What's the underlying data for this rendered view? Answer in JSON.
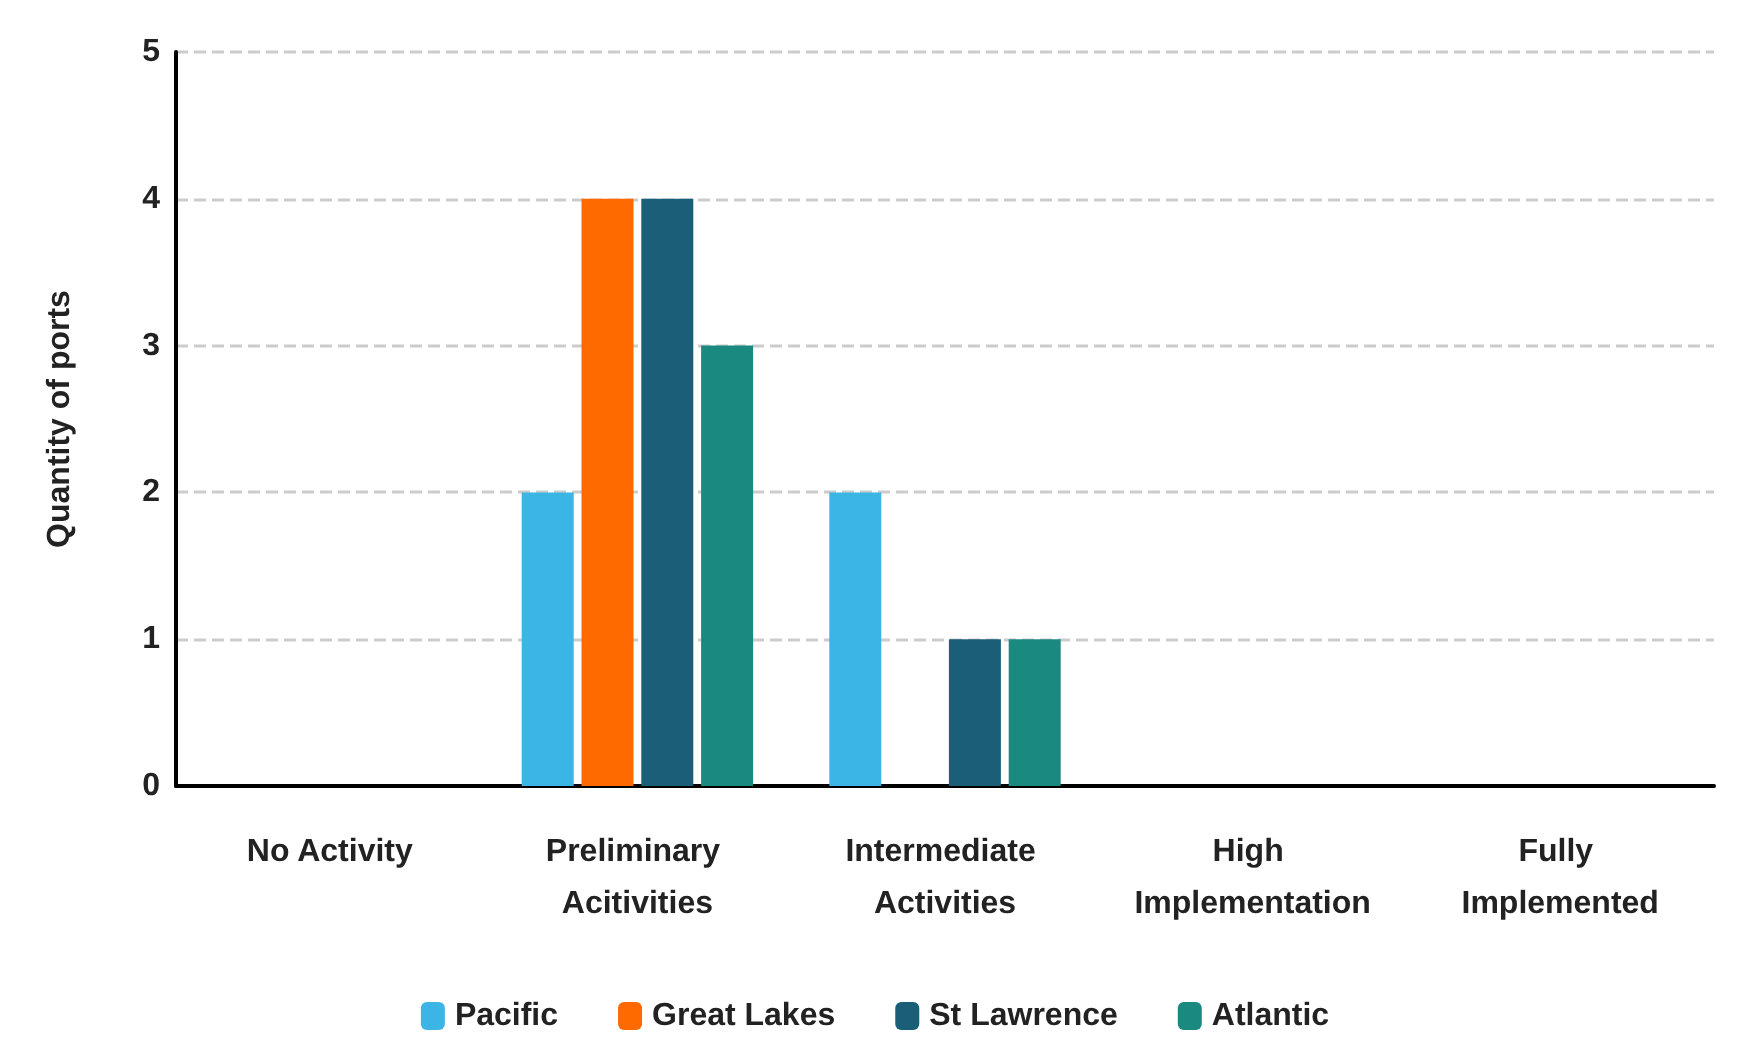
{
  "chart_data": {
    "type": "bar",
    "ylabel": "Quantity of ports",
    "categories": [
      "No Activity",
      "Preliminary Acitivities",
      "Intermediate Activities",
      "High Implementation",
      "Fully Implemented"
    ],
    "series": [
      {
        "name": "Pacific",
        "color": "#3bb5e6",
        "values": [
          0,
          2,
          2,
          0,
          0
        ]
      },
      {
        "name": "Great Lakes",
        "color": "#ff6a00",
        "values": [
          0,
          4,
          0,
          0,
          0
        ]
      },
      {
        "name": "St Lawrence",
        "color": "#1b5e78",
        "values": [
          0,
          4,
          1,
          0,
          0
        ]
      },
      {
        "name": "Atlantic",
        "color": "#1a8a80",
        "values": [
          0,
          3,
          1,
          0,
          0
        ]
      }
    ],
    "ylim": [
      0,
      5
    ],
    "yticks": [
      0,
      1,
      2,
      3,
      4,
      5
    ],
    "grid": "y",
    "legend": "bottom"
  }
}
